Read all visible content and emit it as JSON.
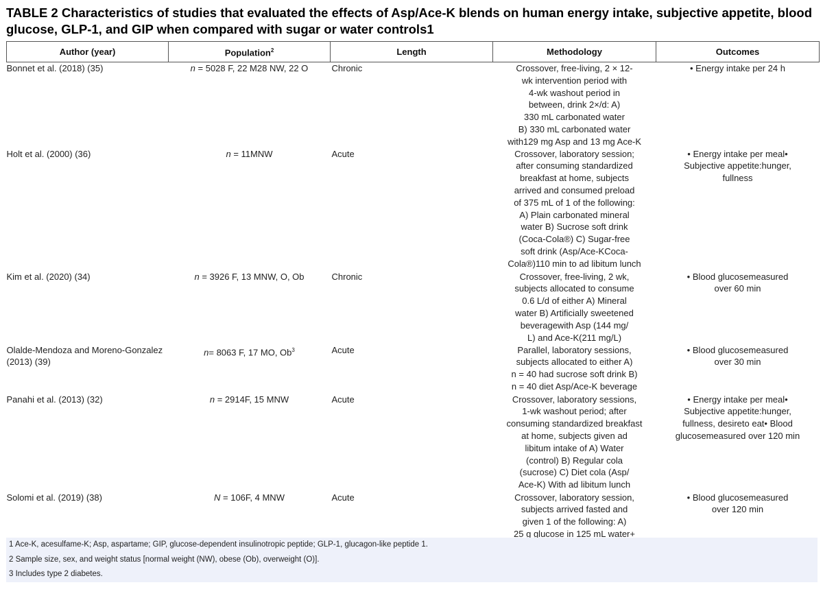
{
  "title": "TABLE 2 Characteristics of studies that evaluated the effects of Asp/Ace-K blends on human energy intake, subjective appetite, blood glucose, GLP-1, and GIP when compared with sugar or water controls1",
  "columns": {
    "author": "Author (year)",
    "population": "Population",
    "population_note": "2",
    "length": "Length",
    "methodology": "Methodology",
    "outcomes": "Outcomes"
  },
  "rows": [
    {
      "author": "Bonnet et al. (2018) (35)",
      "pop_n": "n",
      "pop_rest": " = 5028 F, 22 M28 NW, 22 O",
      "pop_note": "",
      "length": "Chronic",
      "methodology": [
        "Crossover, free-living, 2 × 12-",
        "wk intervention period with",
        "4-wk washout period in",
        "between, drink 2×/d:    A)",
        "330 mL carbonated water",
        "B) 330 mL carbonated water",
        "with129 mg Asp and 13 mg Ace-K"
      ],
      "outcomes": [
        "• Energy intake per 24 h"
      ]
    },
    {
      "author": "Holt et al. (2000) (36)",
      "pop_n": "n",
      "pop_rest": " = 11MNW",
      "pop_note": "",
      "length": "Acute",
      "methodology": [
        "Crossover, laboratory session;",
        "after consuming standardized",
        "breakfast at home, subjects",
        "arrived and consumed preload",
        "of 375 mL of 1 of the following:",
        "A) Plain carbonated mineral",
        "water    B) Sucrose soft drink",
        "(Coca-Cola®)    C) Sugar-free",
        "soft drink (Asp/Ace-KCoca-",
        "Cola®)110 min to ad libitum lunch"
      ],
      "outcomes": [
        "•  Energy intake per meal•",
        "Subjective appetite:hunger,",
        "fullness"
      ]
    },
    {
      "author": "Kim et al. (2020) (34)",
      "pop_n": "n",
      "pop_rest": " = 3926 F, 13 MNW, O, Ob",
      "pop_note": "",
      "length": "Chronic",
      "methodology": [
        "Crossover, free-living, 2 wk,",
        "subjects allocated to consume",
        "0.6 L/d of either    A) Mineral",
        "water    B) Artificially sweetened",
        "beveragewith Asp (144 mg/",
        "L) and Ace-K(211 mg/L)"
      ],
      "outcomes": [
        "• Blood glucosemeasured",
        "over 60 min"
      ]
    },
    {
      "author": "Olalde-Mendoza and Moreno-Gonzalez (2013) (39)",
      "pop_n": "n",
      "pop_rest": "= 8063 F, 17 MO, Ob",
      "pop_note": "3",
      "length": "Acute",
      "methodology": [
        "Parallel, laboratory sessions,",
        "subjects allocated to either    A)",
        "n = 40 had sucrose soft drink    B)",
        "n = 40 diet Asp/Ace-K beverage"
      ],
      "outcomes": [
        "• Blood glucosemeasured",
        "over 30 min"
      ]
    },
    {
      "author": "Panahi et al. (2013) (32)",
      "pop_n": "n",
      "pop_rest": " = 2914F, 15 MNW",
      "pop_note": "",
      "length": "Acute",
      "methodology": [
        "Crossover, laboratory sessions,",
        "1-wk washout period; after",
        "consuming standardized breakfast",
        "at home, subjects given ad",
        "libitum intake of    A) Water",
        "(control)    B) Regular cola",
        "(sucrose)    C) Diet cola (Asp/",
        "Ace-K) With ad libitum lunch"
      ],
      "outcomes": [
        "• Energy intake per meal•",
        "Subjective appetite:hunger,",
        "fullness, desireto eat•    Blood",
        "glucosemeasured over 120 min"
      ]
    },
    {
      "author": "Solomi et al. (2019) (38)",
      "pop_n": "N",
      "pop_rest": " = 106F, 4 MNW",
      "pop_note": "",
      "length": "Acute",
      "methodology": [
        "Crossover, laboratory session,",
        "subjects arrived fasted and",
        "given 1 of the following:    A)",
        "25 g glucose in 125 mL water+"
      ],
      "outcomes": [
        "• Blood glucosemeasured",
        "over 120 min"
      ]
    }
  ],
  "footnotes": [
    "1 Ace-K, acesulfame-K; Asp, aspartame; GIP, glucose-dependent insulinotropic peptide; GLP-1, glucagon-like peptide 1.",
    "2 Sample size, sex, and weight status [normal weight (NW), obese (Ob), overweight (O)].",
    "3 Includes type 2 diabetes."
  ]
}
